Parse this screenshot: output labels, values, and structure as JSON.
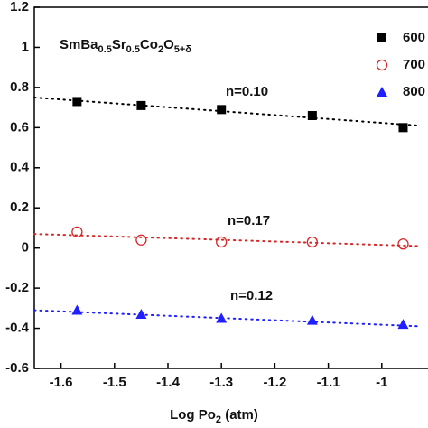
{
  "chart_data": {
    "type": "scatter",
    "title": [
      "SmBa",
      "0.5",
      "Sr",
      "0.5",
      "Co",
      "2",
      "O",
      "5+δ"
    ],
    "x_label": [
      "Log Po",
      "2",
      " (atm)"
    ],
    "x": [
      -1.57,
      -1.45,
      -1.3,
      -1.13,
      -0.96
    ],
    "xlim": [
      -1.65,
      -0.9
    ],
    "xticks": [
      -1.6,
      -1.5,
      -1.4,
      -1.3,
      -1.2,
      -1.1,
      -1.0
    ],
    "ylim": [
      -0.6,
      1.2
    ],
    "yticks": [
      -0.6,
      -0.4,
      -0.2,
      0.0,
      0.2,
      0.4,
      0.6,
      0.8,
      1.0,
      1.2
    ],
    "series": [
      {
        "name": "600",
        "color": "#000000",
        "marker": "square",
        "values": [
          0.73,
          0.71,
          0.69,
          0.66,
          0.6
        ],
        "annotation": "n=0.10",
        "fit": {
          "x": [
            -1.65,
            -0.93
          ],
          "values": [
            0.75,
            0.61
          ]
        }
      },
      {
        "name": "700",
        "color": "#d62728",
        "marker": "open-circle",
        "values": [
          0.08,
          0.04,
          0.03,
          0.03,
          0.02
        ],
        "annotation": "n=0.17",
        "fit": {
          "x": [
            -1.65,
            -0.93
          ],
          "values": [
            0.07,
            0.01
          ]
        }
      },
      {
        "name": "800",
        "color": "#1f1fff",
        "marker": "triangle",
        "values": [
          -0.31,
          -0.33,
          -0.35,
          -0.36,
          -0.38
        ],
        "annotation": "n=0.12",
        "fit": {
          "x": [
            -1.65,
            -0.93
          ],
          "values": [
            -0.31,
            -0.39
          ]
        }
      }
    ]
  }
}
